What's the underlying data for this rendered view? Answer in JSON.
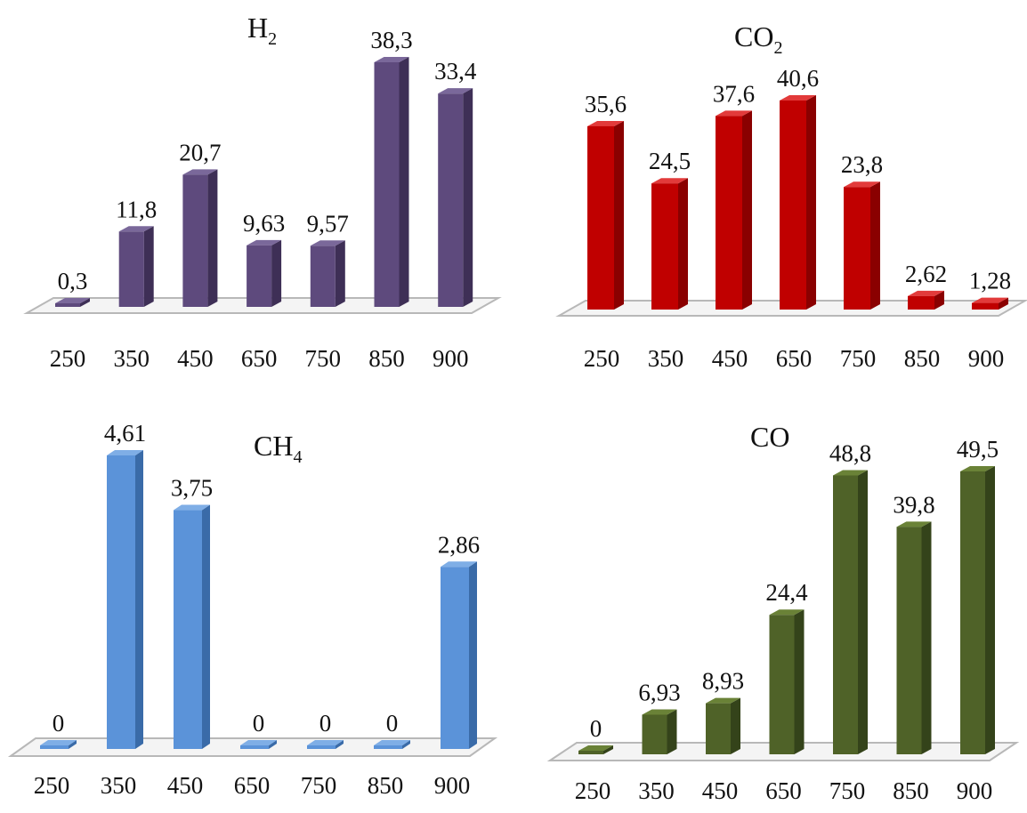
{
  "chart_data": [
    {
      "type": "bar",
      "title": "H",
      "title_sub": "2",
      "categories": [
        "250",
        "350",
        "450",
        "650",
        "750",
        "850",
        "900"
      ],
      "values": [
        0.3,
        11.8,
        20.7,
        9.63,
        9.57,
        38.3,
        33.4
      ],
      "data_labels": [
        "0,3",
        "11,8",
        "20,7",
        "9,63",
        "9,57",
        "38,3",
        "33,4"
      ],
      "ylim": [
        0,
        38.3
      ],
      "grid": false,
      "colors": {
        "front": "#5E4A7D",
        "side": "#3E2F56",
        "top": "#7A689A"
      }
    },
    {
      "type": "bar",
      "title": "CO",
      "title_sub": "2",
      "categories": [
        "250",
        "350",
        "450",
        "650",
        "750",
        "850",
        "900"
      ],
      "values": [
        35.6,
        24.5,
        37.6,
        40.6,
        23.8,
        2.62,
        1.28
      ],
      "data_labels": [
        "35,6",
        "24,5",
        "37,6",
        "40,6",
        "23,8",
        "2,62",
        "1,28"
      ],
      "ylim": [
        0,
        40.6
      ],
      "grid": false,
      "colors": {
        "front": "#C00000",
        "side": "#8A0000",
        "top": "#E23A3A"
      }
    },
    {
      "type": "bar",
      "title": "CH",
      "title_sub": "4",
      "categories": [
        "250",
        "350",
        "450",
        "650",
        "750",
        "850",
        "900"
      ],
      "values": [
        0,
        4.61,
        3.75,
        0,
        0,
        0,
        2.86
      ],
      "data_labels": [
        "0",
        "4,61",
        "3,75",
        "0",
        "0",
        "0",
        "2,86"
      ],
      "ylim": [
        0,
        4.61
      ],
      "grid": false,
      "colors": {
        "front": "#5B93D9",
        "side": "#3A6BA8",
        "top": "#7FAEE6"
      }
    },
    {
      "type": "bar",
      "title": "CO",
      "title_sub": "",
      "categories": [
        "250",
        "350",
        "450",
        "650",
        "750",
        "850",
        "900"
      ],
      "values": [
        0,
        6.93,
        8.93,
        24.4,
        48.8,
        39.8,
        49.5
      ],
      "data_labels": [
        "0",
        "6,93",
        "8,93",
        "24,4",
        "48,8",
        "39,8",
        "49,5"
      ],
      "ylim": [
        0,
        49.5
      ],
      "grid": false,
      "colors": {
        "front": "#4F6228",
        "side": "#34431A",
        "top": "#6A8237"
      }
    }
  ]
}
